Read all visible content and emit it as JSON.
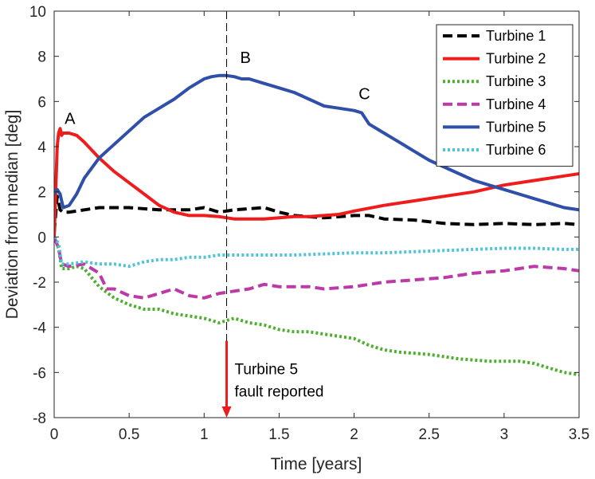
{
  "chart_data": {
    "type": "line",
    "xlabel": "Time [years]",
    "ylabel": "Deviation from median [deg]",
    "xlim": [
      0,
      3.5
    ],
    "ylim": [
      -8,
      10
    ],
    "xticks": [
      0,
      0.5,
      1,
      1.5,
      2,
      2.5,
      3,
      3.5
    ],
    "xtick_labels": [
      "0",
      "0.5",
      "1",
      "1.5",
      "2",
      "2.5",
      "3",
      "3.5"
    ],
    "yticks": [
      -8,
      -6,
      -4,
      -2,
      0,
      2,
      4,
      6,
      8,
      10
    ],
    "ytick_labels": [
      "-8",
      "-6",
      "-4",
      "-2",
      "0",
      "2",
      "4",
      "6",
      "8",
      "10"
    ],
    "grid": false,
    "legend_position": "top-right",
    "series": [
      {
        "name": "Turbine 1",
        "color": "#000000",
        "style": "dashed",
        "points": [
          [
            0,
            0.2
          ],
          [
            0.02,
            1.8
          ],
          [
            0.04,
            1.2
          ],
          [
            0.06,
            1.1
          ],
          [
            0.1,
            1.1
          ],
          [
            0.2,
            1.2
          ],
          [
            0.3,
            1.3
          ],
          [
            0.5,
            1.3
          ],
          [
            0.7,
            1.2
          ],
          [
            0.9,
            1.2
          ],
          [
            1.0,
            1.3
          ],
          [
            1.1,
            1.1
          ],
          [
            1.2,
            1.2
          ],
          [
            1.3,
            1.25
          ],
          [
            1.4,
            1.3
          ],
          [
            1.5,
            1.1
          ],
          [
            1.6,
            0.95
          ],
          [
            1.8,
            0.85
          ],
          [
            2.0,
            0.95
          ],
          [
            2.1,
            0.95
          ],
          [
            2.2,
            0.8
          ],
          [
            2.4,
            0.75
          ],
          [
            2.6,
            0.6
          ],
          [
            2.8,
            0.55
          ],
          [
            3.0,
            0.6
          ],
          [
            3.2,
            0.55
          ],
          [
            3.4,
            0.6
          ],
          [
            3.5,
            0.55
          ]
        ]
      },
      {
        "name": "Turbine 2",
        "color": "#ee1c1c",
        "style": "solid",
        "points": [
          [
            0,
            0
          ],
          [
            0.01,
            2.0
          ],
          [
            0.02,
            4.0
          ],
          [
            0.03,
            4.6
          ],
          [
            0.04,
            4.8
          ],
          [
            0.05,
            4.5
          ],
          [
            0.06,
            4.6
          ],
          [
            0.1,
            4.6
          ],
          [
            0.15,
            4.5
          ],
          [
            0.2,
            4.2
          ],
          [
            0.3,
            3.5
          ],
          [
            0.4,
            2.9
          ],
          [
            0.5,
            2.4
          ],
          [
            0.6,
            1.9
          ],
          [
            0.7,
            1.4
          ],
          [
            0.8,
            1.1
          ],
          [
            0.9,
            0.95
          ],
          [
            1.0,
            0.95
          ],
          [
            1.1,
            0.9
          ],
          [
            1.2,
            0.8
          ],
          [
            1.3,
            0.8
          ],
          [
            1.4,
            0.8
          ],
          [
            1.5,
            0.85
          ],
          [
            1.6,
            0.9
          ],
          [
            1.7,
            0.9
          ],
          [
            1.8,
            0.95
          ],
          [
            1.9,
            1.0
          ],
          [
            2.0,
            1.15
          ],
          [
            2.2,
            1.4
          ],
          [
            2.4,
            1.6
          ],
          [
            2.6,
            1.8
          ],
          [
            2.8,
            2.0
          ],
          [
            3.0,
            2.3
          ],
          [
            3.2,
            2.5
          ],
          [
            3.4,
            2.7
          ],
          [
            3.5,
            2.8
          ]
        ]
      },
      {
        "name": "Turbine 3",
        "color": "#4daf2e",
        "style": "dotted",
        "points": [
          [
            0,
            0
          ],
          [
            0.03,
            -0.5
          ],
          [
            0.05,
            -1.4
          ],
          [
            0.1,
            -1.4
          ],
          [
            0.15,
            -1.3
          ],
          [
            0.2,
            -1.4
          ],
          [
            0.25,
            -1.8
          ],
          [
            0.3,
            -2.2
          ],
          [
            0.4,
            -2.7
          ],
          [
            0.5,
            -3.0
          ],
          [
            0.6,
            -3.2
          ],
          [
            0.7,
            -3.2
          ],
          [
            0.8,
            -3.4
          ],
          [
            0.9,
            -3.5
          ],
          [
            1.0,
            -3.6
          ],
          [
            1.1,
            -3.8
          ],
          [
            1.2,
            -3.6
          ],
          [
            1.3,
            -3.8
          ],
          [
            1.4,
            -3.9
          ],
          [
            1.5,
            -4.1
          ],
          [
            1.6,
            -4.2
          ],
          [
            1.7,
            -4.2
          ],
          [
            1.8,
            -4.3
          ],
          [
            1.9,
            -4.4
          ],
          [
            2.0,
            -4.5
          ],
          [
            2.1,
            -4.8
          ],
          [
            2.2,
            -5.0
          ],
          [
            2.3,
            -5.1
          ],
          [
            2.5,
            -5.2
          ],
          [
            2.7,
            -5.4
          ],
          [
            2.9,
            -5.5
          ],
          [
            3.1,
            -5.5
          ],
          [
            3.2,
            -5.6
          ],
          [
            3.3,
            -5.8
          ],
          [
            3.4,
            -6.0
          ],
          [
            3.5,
            -6.1
          ]
        ]
      },
      {
        "name": "Turbine 4",
        "color": "#bb3aa8",
        "style": "dashed",
        "points": [
          [
            0,
            0
          ],
          [
            0.03,
            -0.5
          ],
          [
            0.05,
            -1.2
          ],
          [
            0.1,
            -1.3
          ],
          [
            0.2,
            -1.2
          ],
          [
            0.3,
            -1.6
          ],
          [
            0.35,
            -2.3
          ],
          [
            0.4,
            -2.3
          ],
          [
            0.5,
            -2.6
          ],
          [
            0.6,
            -2.7
          ],
          [
            0.7,
            -2.5
          ],
          [
            0.8,
            -2.3
          ],
          [
            0.9,
            -2.6
          ],
          [
            1.0,
            -2.7
          ],
          [
            1.1,
            -2.5
          ],
          [
            1.2,
            -2.4
          ],
          [
            1.3,
            -2.3
          ],
          [
            1.4,
            -2.1
          ],
          [
            1.5,
            -2.2
          ],
          [
            1.6,
            -2.2
          ],
          [
            1.7,
            -2.2
          ],
          [
            1.8,
            -2.3
          ],
          [
            2.0,
            -2.2
          ],
          [
            2.2,
            -2.0
          ],
          [
            2.4,
            -1.9
          ],
          [
            2.6,
            -1.8
          ],
          [
            2.8,
            -1.6
          ],
          [
            3.0,
            -1.5
          ],
          [
            3.2,
            -1.3
          ],
          [
            3.3,
            -1.35
          ],
          [
            3.4,
            -1.4
          ],
          [
            3.5,
            -1.5
          ]
        ]
      },
      {
        "name": "Turbine 5",
        "color": "#2f4fa8",
        "style": "solid",
        "points": [
          [
            0,
            1.9
          ],
          [
            0.02,
            2.1
          ],
          [
            0.04,
            1.9
          ],
          [
            0.06,
            1.3
          ],
          [
            0.1,
            1.4
          ],
          [
            0.15,
            1.9
          ],
          [
            0.2,
            2.6
          ],
          [
            0.3,
            3.5
          ],
          [
            0.4,
            4.1
          ],
          [
            0.5,
            4.7
          ],
          [
            0.6,
            5.3
          ],
          [
            0.7,
            5.7
          ],
          [
            0.8,
            6.1
          ],
          [
            0.9,
            6.6
          ],
          [
            1.0,
            7.0
          ],
          [
            1.05,
            7.1
          ],
          [
            1.1,
            7.15
          ],
          [
            1.15,
            7.15
          ],
          [
            1.2,
            7.1
          ],
          [
            1.25,
            7.0
          ],
          [
            1.3,
            7.0
          ],
          [
            1.4,
            6.8
          ],
          [
            1.5,
            6.6
          ],
          [
            1.6,
            6.4
          ],
          [
            1.7,
            6.1
          ],
          [
            1.8,
            5.8
          ],
          [
            1.9,
            5.7
          ],
          [
            2.0,
            5.6
          ],
          [
            2.05,
            5.5
          ],
          [
            2.1,
            5.0
          ],
          [
            2.2,
            4.6
          ],
          [
            2.3,
            4.2
          ],
          [
            2.4,
            3.8
          ],
          [
            2.5,
            3.4
          ],
          [
            2.6,
            3.1
          ],
          [
            2.7,
            2.8
          ],
          [
            2.8,
            2.5
          ],
          [
            2.9,
            2.3
          ],
          [
            3.0,
            2.1
          ],
          [
            3.1,
            1.9
          ],
          [
            3.2,
            1.7
          ],
          [
            3.3,
            1.5
          ],
          [
            3.4,
            1.3
          ],
          [
            3.5,
            1.2
          ]
        ]
      },
      {
        "name": "Turbine 6",
        "color": "#4fc4d6",
        "style": "dotted",
        "points": [
          [
            0,
            0
          ],
          [
            0.03,
            -0.3
          ],
          [
            0.05,
            -1.2
          ],
          [
            0.1,
            -1.2
          ],
          [
            0.2,
            -1.1
          ],
          [
            0.3,
            -1.2
          ],
          [
            0.4,
            -1.2
          ],
          [
            0.5,
            -1.3
          ],
          [
            0.6,
            -1.1
          ],
          [
            0.7,
            -1.0
          ],
          [
            0.8,
            -1.0
          ],
          [
            0.9,
            -0.9
          ],
          [
            1.0,
            -0.9
          ],
          [
            1.1,
            -0.8
          ],
          [
            1.2,
            -0.8
          ],
          [
            1.3,
            -0.8
          ],
          [
            1.5,
            -0.8
          ],
          [
            1.6,
            -0.8
          ],
          [
            1.8,
            -0.75
          ],
          [
            2.0,
            -0.7
          ],
          [
            2.2,
            -0.7
          ],
          [
            2.4,
            -0.65
          ],
          [
            2.6,
            -0.6
          ],
          [
            2.8,
            -0.55
          ],
          [
            3.0,
            -0.5
          ],
          [
            3.2,
            -0.5
          ],
          [
            3.4,
            -0.55
          ],
          [
            3.5,
            -0.55
          ]
        ]
      }
    ],
    "annotations": [
      {
        "text": "A",
        "x": 0.07,
        "y": 5.0
      },
      {
        "text": "B",
        "x": 1.24,
        "y": 7.7
      },
      {
        "text": "C",
        "x": 2.03,
        "y": 6.1
      }
    ],
    "vertical_marker": {
      "x": 1.15,
      "arrow_from_y": -4.6,
      "arrow_to_y": -8.0,
      "label_lines": [
        "Turbine 5",
        "fault reported"
      ],
      "line_color": "#000000",
      "arrow_color": "#ee1c1c"
    }
  }
}
